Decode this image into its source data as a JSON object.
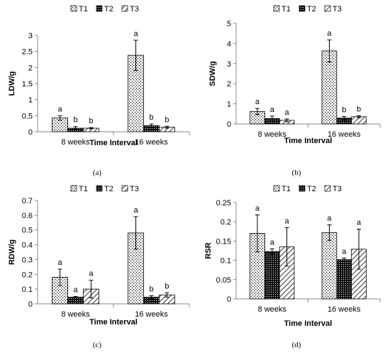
{
  "figure": {
    "panels": [
      "(a)",
      "(b)",
      "(c)",
      "(d)"
    ]
  },
  "chart_data": [
    {
      "type": "bar",
      "panel_label": "(a)",
      "xlabel": "Time Interval",
      "ylabel": "LDW/g",
      "categories": [
        "8 weeks",
        "16 weeks"
      ],
      "ylim": [
        0,
        3
      ],
      "yticks": [
        "0",
        "0.5",
        "1",
        "1.5",
        "2",
        "2.5",
        "3"
      ],
      "legend": {
        "position": "top",
        "entries": [
          "T1",
          "T2",
          "T3"
        ]
      },
      "series": [
        {
          "name": "T1",
          "values": [
            0.43,
            2.38
          ],
          "errors": [
            0.07,
            0.47
          ],
          "letters": [
            "a",
            "a"
          ]
        },
        {
          "name": "T2",
          "values": [
            0.11,
            0.19
          ],
          "errors": [
            0.05,
            0.05
          ],
          "letters": [
            "b",
            "b"
          ]
        },
        {
          "name": "T3",
          "values": [
            0.11,
            0.14
          ],
          "errors": [
            0.02,
            0.03
          ],
          "letters": [
            "b",
            "b"
          ]
        }
      ]
    },
    {
      "type": "bar",
      "panel_label": "(b)",
      "xlabel": "Time Interval",
      "ylabel": "SDW/g",
      "categories": [
        "8 weeks",
        "16 weeks"
      ],
      "ylim": [
        0,
        5
      ],
      "yticks": [
        "0",
        "1",
        "2",
        "3",
        "4",
        "5"
      ],
      "legend": {
        "position": "top",
        "entries": [
          "T1",
          "T2",
          "T3"
        ]
      },
      "series": [
        {
          "name": "T1",
          "values": [
            0.62,
            3.63
          ],
          "errors": [
            0.15,
            0.55
          ],
          "letters": [
            "a",
            "a"
          ]
        },
        {
          "name": "T2",
          "values": [
            0.27,
            0.29
          ],
          "errors": [
            0.12,
            0.08
          ],
          "letters": [
            "a",
            "b"
          ]
        },
        {
          "name": "T3",
          "values": [
            0.18,
            0.36
          ],
          "errors": [
            0.07,
            0.05
          ],
          "letters": [
            "a",
            "b"
          ]
        }
      ]
    },
    {
      "type": "bar",
      "panel_label": "(c)",
      "xlabel": "Time Interval",
      "ylabel": "RDW/g",
      "categories": [
        "8 weeks",
        "16 weeks"
      ],
      "ylim": [
        0,
        0.7
      ],
      "yticks": [
        "0",
        "0.1",
        "0.2",
        "0.3",
        "0.4",
        "0.5",
        "0.6",
        "0.7"
      ],
      "legend": {
        "position": "top",
        "entries": [
          "T1",
          "T2",
          "T3"
        ]
      },
      "series": [
        {
          "name": "T1",
          "values": [
            0.18,
            0.48
          ],
          "errors": [
            0.055,
            0.11
          ],
          "letters": [
            "a",
            "a"
          ]
        },
        {
          "name": "T2",
          "values": [
            0.045,
            0.045
          ],
          "errors": [
            0.005,
            0.01
          ],
          "letters": [
            "a",
            "b"
          ]
        },
        {
          "name": "T3",
          "values": [
            0.1,
            0.06
          ],
          "errors": [
            0.06,
            0.015
          ],
          "letters": [
            "a",
            "b"
          ]
        }
      ]
    },
    {
      "type": "bar",
      "panel_label": "(d)",
      "xlabel": "Time Interval",
      "ylabel": "RSR",
      "categories": [
        "8 weeks",
        "16 weeks"
      ],
      "ylim": [
        0,
        0.25
      ],
      "yticks": [
        "0",
        "0.05",
        "0.1",
        "0.15",
        "0.2",
        "0.25"
      ],
      "legend": {
        "position": "top",
        "entries": [
          "T1",
          "T2",
          "T3"
        ]
      },
      "series": [
        {
          "name": "T1",
          "values": [
            0.17,
            0.172
          ],
          "errors": [
            0.048,
            0.02
          ],
          "letters": [
            "a",
            "a"
          ]
        },
        {
          "name": "T2",
          "values": [
            0.123,
            0.102
          ],
          "errors": [
            0.007,
            0.004
          ],
          "letters": [
            "a",
            "a"
          ]
        },
        {
          "name": "T3",
          "values": [
            0.135,
            0.129
          ],
          "errors": [
            0.05,
            0.052
          ],
          "letters": [
            "a",
            "a"
          ]
        }
      ]
    }
  ]
}
